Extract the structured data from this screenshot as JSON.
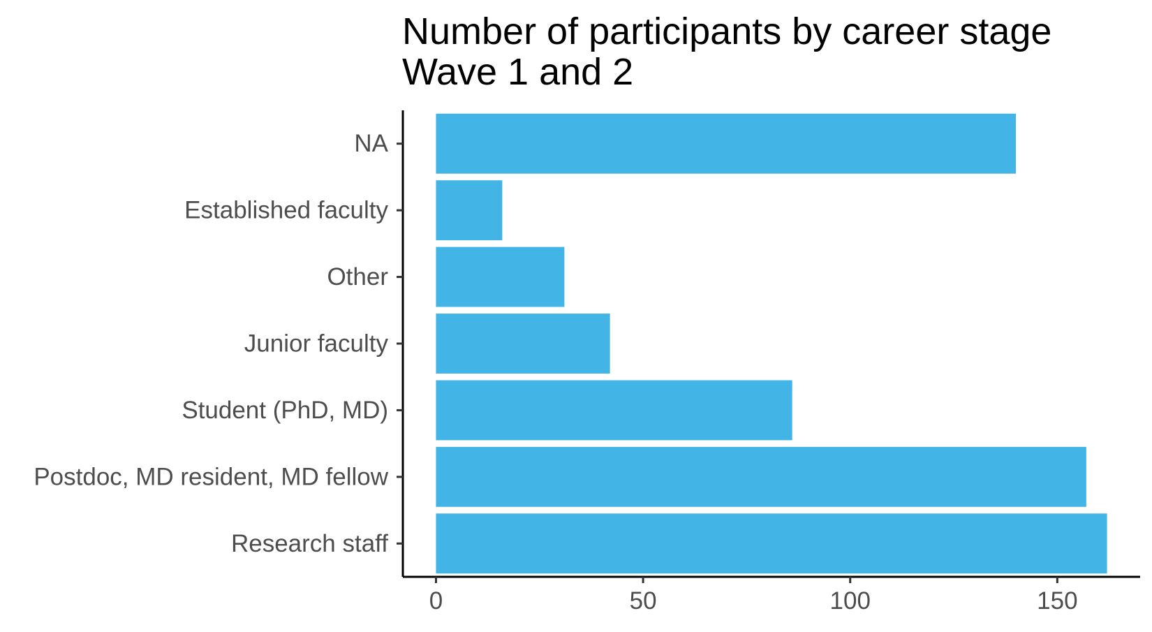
{
  "chart_data": {
    "type": "bar",
    "orientation": "horizontal",
    "title_lines": [
      "Number of participants by career stage",
      "Wave 1 and 2"
    ],
    "xlabel": "",
    "ylabel": "",
    "categories": [
      "NA",
      "Established faculty",
      "Other",
      "Junior faculty",
      "Student (PhD, MD)",
      "Postdoc, MD resident, MD fellow",
      "Research staff"
    ],
    "values": [
      140,
      16,
      31,
      42,
      86,
      157,
      162
    ],
    "xlim": [
      -8,
      170
    ],
    "x_ticks": [
      0,
      50,
      100,
      150
    ],
    "x_tick_labels": [
      "0",
      "50",
      "100",
      "150"
    ],
    "bar_color": "#42b4e5",
    "grid": false,
    "legend": "none"
  }
}
